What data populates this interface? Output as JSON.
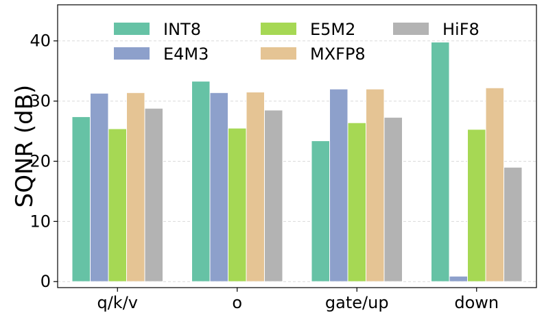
{
  "chart_data": {
    "type": "bar",
    "title": "",
    "xlabel": "",
    "ylabel": "SQNR (dB)",
    "ylim": [
      -1,
      46
    ],
    "yticks": [
      0,
      10,
      20,
      30,
      40
    ],
    "ytick_labels": [
      "0",
      "10",
      "20",
      "30",
      "40"
    ],
    "grid": true,
    "legend_position": "top",
    "categories": [
      "q/k/v",
      "o",
      "gate/up",
      "down"
    ],
    "series": [
      {
        "name": "INT8",
        "color": "#66c2a5",
        "values": [
          27.4,
          33.3,
          23.4,
          39.8
        ]
      },
      {
        "name": "E4M3",
        "color": "#8da0cb",
        "values": [
          31.3,
          31.4,
          32.0,
          0.9
        ]
      },
      {
        "name": "E5M2",
        "color": "#a6d854",
        "values": [
          25.4,
          25.5,
          26.4,
          25.3
        ]
      },
      {
        "name": "MXFP8",
        "color": "#e5c494",
        "values": [
          31.4,
          31.5,
          32.0,
          32.2
        ]
      },
      {
        "name": "HiF8",
        "color": "#b3b3b3",
        "values": [
          28.8,
          28.5,
          27.3,
          19.0
        ]
      }
    ]
  }
}
